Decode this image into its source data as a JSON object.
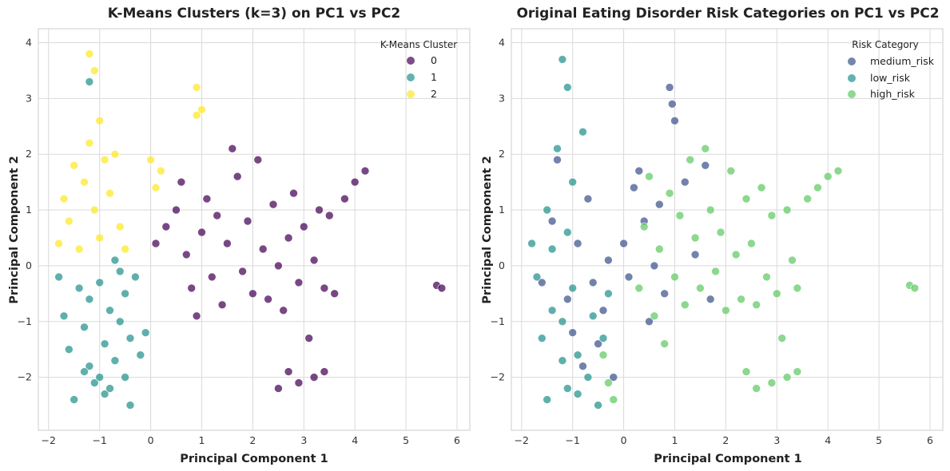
{
  "chart_data": [
    {
      "type": "scatter",
      "title": "K-Means Clusters (k=3) on PC1 vs PC2",
      "xlabel": "Principal Component 1",
      "ylabel": "Principal Component 2",
      "xlim": [
        -2.2,
        6.25
      ],
      "ylim": [
        -2.95,
        4.25
      ],
      "xticks": [
        -2,
        -1,
        0,
        1,
        2,
        3,
        4,
        5,
        6
      ],
      "yticks": [
        -2,
        -1,
        0,
        1,
        2,
        3,
        4
      ],
      "xtick_labels": [
        "−2",
        "−1",
        "0",
        "1",
        "2",
        "3",
        "4",
        "5",
        "6"
      ],
      "ytick_labels": [
        "−2",
        "−1",
        "0",
        "1",
        "2",
        "3",
        "4"
      ],
      "grid": true,
      "legend": {
        "title": "K-Means Cluster",
        "placement": "top-right"
      },
      "series": [
        {
          "name": "0",
          "color": "#440154",
          "points": [
            [
              0.1,
              0.4
            ],
            [
              0.3,
              0.7
            ],
            [
              0.5,
              1.0
            ],
            [
              0.6,
              1.5
            ],
            [
              0.7,
              0.2
            ],
            [
              0.8,
              -0.4
            ],
            [
              0.9,
              -0.9
            ],
            [
              1.0,
              0.6
            ],
            [
              1.1,
              1.2
            ],
            [
              1.2,
              -0.2
            ],
            [
              1.3,
              0.9
            ],
            [
              1.4,
              -0.7
            ],
            [
              1.5,
              0.4
            ],
            [
              1.6,
              2.1
            ],
            [
              1.7,
              1.6
            ],
            [
              1.8,
              -0.1
            ],
            [
              1.9,
              0.8
            ],
            [
              2.0,
              -0.5
            ],
            [
              2.1,
              1.9
            ],
            [
              2.2,
              0.3
            ],
            [
              2.3,
              -0.6
            ],
            [
              2.4,
              1.1
            ],
            [
              2.5,
              0.0
            ],
            [
              2.6,
              -0.8
            ],
            [
              2.7,
              0.5
            ],
            [
              2.8,
              1.3
            ],
            [
              2.9,
              -0.3
            ],
            [
              3.0,
              0.7
            ],
            [
              3.1,
              -1.3
            ],
            [
              3.2,
              0.1
            ],
            [
              3.3,
              1.0
            ],
            [
              3.4,
              -0.4
            ],
            [
              3.5,
              0.9
            ],
            [
              3.6,
              -0.5
            ],
            [
              3.8,
              1.2
            ],
            [
              4.0,
              1.5
            ],
            [
              4.2,
              1.7
            ],
            [
              2.5,
              -2.2
            ],
            [
              2.7,
              -1.9
            ],
            [
              2.9,
              -2.1
            ],
            [
              3.2,
              -2.0
            ],
            [
              3.4,
              -1.9
            ],
            [
              5.6,
              -0.35
            ],
            [
              5.7,
              -0.4
            ]
          ]
        },
        {
          "name": "1",
          "color": "#21918c",
          "points": [
            [
              -1.8,
              -0.2
            ],
            [
              -1.7,
              -0.9
            ],
            [
              -1.6,
              -1.5
            ],
            [
              -1.5,
              -2.4
            ],
            [
              -1.4,
              -0.4
            ],
            [
              -1.3,
              -1.1
            ],
            [
              -1.2,
              -1.8
            ],
            [
              -1.2,
              -0.6
            ],
            [
              -1.1,
              -2.1
            ],
            [
              -1.0,
              -0.3
            ],
            [
              -0.9,
              -1.4
            ],
            [
              -0.9,
              -2.3
            ],
            [
              -0.8,
              -0.8
            ],
            [
              -0.7,
              -1.7
            ],
            [
              -0.7,
              0.1
            ],
            [
              -0.6,
              -1.0
            ],
            [
              -0.5,
              -2.0
            ],
            [
              -0.5,
              -0.5
            ],
            [
              -0.4,
              -1.3
            ],
            [
              -0.4,
              -2.5
            ],
            [
              -0.3,
              -0.2
            ],
            [
              -0.2,
              -1.6
            ],
            [
              -0.1,
              -1.2
            ],
            [
              -1.2,
              3.3
            ],
            [
              -1.3,
              -1.9
            ],
            [
              -1.0,
              -2.0
            ],
            [
              -0.6,
              -0.1
            ],
            [
              -0.8,
              -2.2
            ]
          ]
        },
        {
          "name": "2",
          "color": "#fde725",
          "points": [
            [
              -1.8,
              0.4
            ],
            [
              -1.7,
              1.2
            ],
            [
              -1.6,
              0.8
            ],
            [
              -1.5,
              1.8
            ],
            [
              -1.4,
              0.3
            ],
            [
              -1.3,
              1.5
            ],
            [
              -1.2,
              2.2
            ],
            [
              -1.2,
              3.8
            ],
            [
              -1.1,
              3.5
            ],
            [
              -1.1,
              1.0
            ],
            [
              -1.0,
              2.6
            ],
            [
              -1.0,
              0.5
            ],
            [
              -0.9,
              1.9
            ],
            [
              -0.8,
              1.3
            ],
            [
              -0.7,
              2.0
            ],
            [
              -0.6,
              0.7
            ],
            [
              -0.5,
              0.3
            ],
            [
              0.0,
              1.9
            ],
            [
              0.1,
              1.4
            ],
            [
              0.2,
              1.7
            ],
            [
              0.9,
              3.2
            ],
            [
              1.0,
              2.8
            ],
            [
              0.9,
              2.7
            ]
          ]
        }
      ]
    },
    {
      "type": "scatter",
      "title": "Original Eating Disorder Risk Categories on PC1 vs PC2",
      "xlabel": "Principal Component 1",
      "ylabel": "Principal Component 2",
      "xlim": [
        -2.2,
        6.25
      ],
      "ylim": [
        -2.95,
        4.25
      ],
      "xticks": [
        -2,
        -1,
        0,
        1,
        2,
        3,
        4,
        5,
        6
      ],
      "yticks": [
        -2,
        -1,
        0,
        1,
        2,
        3,
        4
      ],
      "xtick_labels": [
        "−2",
        "−1",
        "0",
        "1",
        "2",
        "3",
        "4",
        "5",
        "6"
      ],
      "ytick_labels": [
        "−2",
        "−1",
        "0",
        "1",
        "2",
        "3",
        "4"
      ],
      "grid": true,
      "legend": {
        "title": "Risk Category",
        "placement": "top-right"
      },
      "series": [
        {
          "name": "medium_risk",
          "color": "#3b528b",
          "points": [
            [
              -1.6,
              -0.3
            ],
            [
              -1.4,
              0.8
            ],
            [
              -1.3,
              1.9
            ],
            [
              -1.1,
              -0.6
            ],
            [
              -1.0,
              -1.2
            ],
            [
              -0.9,
              0.4
            ],
            [
              -0.8,
              -1.8
            ],
            [
              -0.7,
              1.2
            ],
            [
              -0.6,
              -0.3
            ],
            [
              -0.5,
              -1.4
            ],
            [
              -0.4,
              -0.8
            ],
            [
              -0.3,
              0.1
            ],
            [
              -0.2,
              -2.0
            ],
            [
              0.0,
              0.4
            ],
            [
              0.1,
              -0.2
            ],
            [
              0.2,
              1.4
            ],
            [
              0.3,
              1.7
            ],
            [
              0.4,
              0.8
            ],
            [
              0.5,
              -1.0
            ],
            [
              0.6,
              0.0
            ],
            [
              0.7,
              1.1
            ],
            [
              0.8,
              -0.5
            ],
            [
              0.9,
              3.2
            ],
            [
              0.95,
              2.9
            ],
            [
              1.0,
              2.6
            ],
            [
              1.2,
              1.5
            ],
            [
              1.4,
              0.2
            ],
            [
              1.6,
              1.8
            ],
            [
              1.7,
              -0.6
            ]
          ]
        },
        {
          "name": "low_risk",
          "color": "#21918c",
          "points": [
            [
              -1.8,
              0.4
            ],
            [
              -1.7,
              -0.2
            ],
            [
              -1.6,
              -1.3
            ],
            [
              -1.5,
              1.0
            ],
            [
              -1.5,
              -2.4
            ],
            [
              -1.4,
              0.3
            ],
            [
              -1.3,
              2.1
            ],
            [
              -1.2,
              -1.0
            ],
            [
              -1.2,
              3.7
            ],
            [
              -1.1,
              3.2
            ],
            [
              -1.1,
              -2.2
            ],
            [
              -1.0,
              1.5
            ],
            [
              -1.0,
              -0.4
            ],
            [
              -0.9,
              -1.6
            ],
            [
              -0.8,
              2.4
            ],
            [
              -0.7,
              -2.0
            ],
            [
              -0.6,
              -0.9
            ],
            [
              -0.5,
              -2.5
            ],
            [
              -0.4,
              -1.3
            ],
            [
              -0.3,
              -0.5
            ],
            [
              -1.4,
              -0.8
            ],
            [
              -1.1,
              0.6
            ],
            [
              -0.9,
              -2.3
            ],
            [
              -1.2,
              -1.7
            ]
          ]
        },
        {
          "name": "high_risk",
          "color": "#5ec962",
          "points": [
            [
              0.3,
              -0.4
            ],
            [
              0.4,
              0.7
            ],
            [
              0.5,
              1.6
            ],
            [
              0.6,
              -0.9
            ],
            [
              0.7,
              0.3
            ],
            [
              0.8,
              -1.4
            ],
            [
              0.9,
              1.3
            ],
            [
              1.0,
              -0.2
            ],
            [
              1.1,
              0.9
            ],
            [
              1.2,
              -0.7
            ],
            [
              1.3,
              1.9
            ],
            [
              1.4,
              0.5
            ],
            [
              1.5,
              -0.4
            ],
            [
              1.6,
              2.1
            ],
            [
              1.7,
              1.0
            ],
            [
              1.8,
              -0.1
            ],
            [
              1.9,
              0.6
            ],
            [
              2.0,
              -0.8
            ],
            [
              2.1,
              1.7
            ],
            [
              2.2,
              0.2
            ],
            [
              2.3,
              -0.6
            ],
            [
              2.4,
              1.2
            ],
            [
              2.5,
              0.4
            ],
            [
              2.6,
              -0.7
            ],
            [
              2.7,
              1.4
            ],
            [
              2.8,
              -0.2
            ],
            [
              2.9,
              0.9
            ],
            [
              3.0,
              -0.5
            ],
            [
              3.1,
              -1.3
            ],
            [
              3.2,
              1.0
            ],
            [
              3.3,
              0.1
            ],
            [
              3.4,
              -0.4
            ],
            [
              3.6,
              1.2
            ],
            [
              3.8,
              1.4
            ],
            [
              4.0,
              1.6
            ],
            [
              4.2,
              1.7
            ],
            [
              2.4,
              -1.9
            ],
            [
              2.6,
              -2.2
            ],
            [
              2.9,
              -2.1
            ],
            [
              3.2,
              -2.0
            ],
            [
              3.4,
              -1.9
            ],
            [
              -0.4,
              -1.6
            ],
            [
              -0.3,
              -2.1
            ],
            [
              -0.2,
              -2.4
            ],
            [
              5.6,
              -0.35
            ],
            [
              5.7,
              -0.4
            ]
          ]
        }
      ]
    }
  ]
}
